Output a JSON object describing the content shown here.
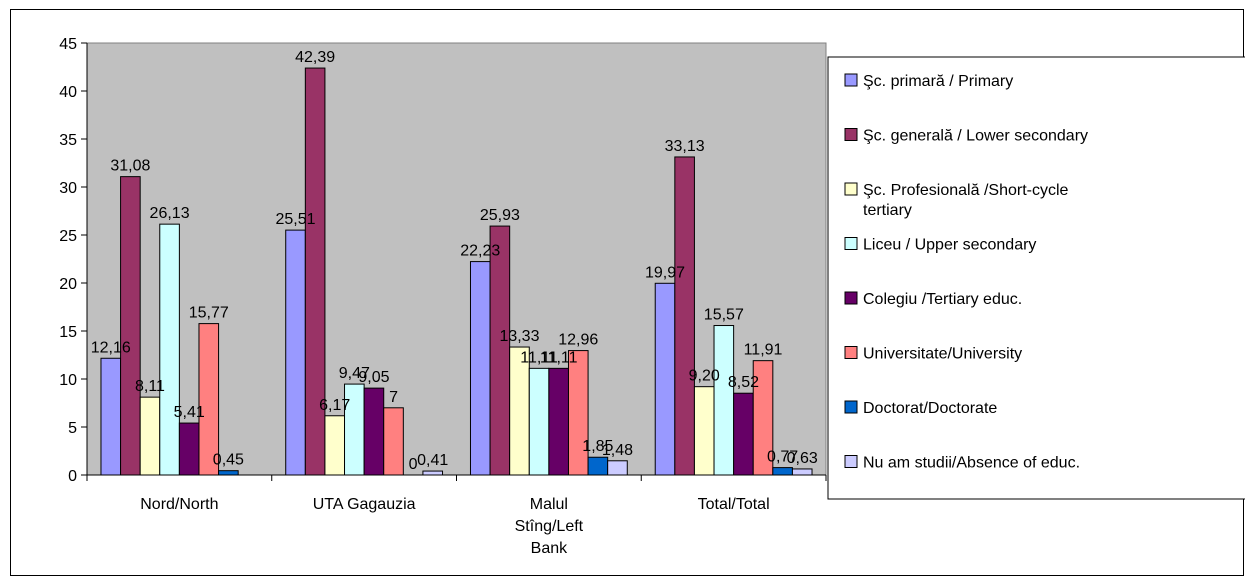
{
  "chart_data": {
    "type": "bar",
    "categories": [
      "Nord/North",
      "UTA Gagauzia",
      "Malul Stîng/Left Bank",
      "Total/Total"
    ],
    "category_display_lines": [
      [
        "Nord/North"
      ],
      [
        "UTA Gagauzia"
      ],
      [
        "Malul",
        "Stîng/Left",
        "Bank"
      ],
      [
        "Total/Total"
      ]
    ],
    "ylim": [
      0,
      45
    ],
    "yticks": [
      "0",
      "5",
      "10",
      "15",
      "20",
      "25",
      "30",
      "35",
      "40",
      "45"
    ],
    "title": "",
    "xlabel": "",
    "ylabel": "",
    "grid": false,
    "plot_background": "#c0c0c0",
    "legend_position": "right",
    "series": [
      {
        "name": "Şc. primară / Primary",
        "legend_lines": [
          "Şc. primară / Primary"
        ],
        "color": "#9999ff",
        "values": [
          12.16,
          25.51,
          22.23,
          19.97
        ],
        "labels": [
          "12,16",
          "25,51",
          "22,23",
          "19,97"
        ]
      },
      {
        "name": "Şc. generală / Lower secondary",
        "legend_lines": [
          "Şc. generală / Lower secondary"
        ],
        "color": "#993366",
        "values": [
          31.08,
          42.39,
          25.93,
          33.13
        ],
        "labels": [
          "31,08",
          "42,39",
          "25,93",
          "33,13"
        ]
      },
      {
        "name": "Şc. Profesională /Short-cycle tertiary",
        "legend_lines": [
          "Şc. Profesională /Short-cycle",
          "tertiary"
        ],
        "color": "#ffffcc",
        "values": [
          8.11,
          6.17,
          13.33,
          9.2
        ],
        "labels": [
          "8,11",
          "6,17",
          "13,33",
          "9,20"
        ]
      },
      {
        "name": "Liceu / Upper secondary",
        "legend_lines": [
          "Liceu / Upper secondary"
        ],
        "color": "#ccffff",
        "values": [
          26.13,
          9.47,
          11.11,
          15.57
        ],
        "labels": [
          "26,13",
          "9,47",
          "11,11",
          "15,57"
        ]
      },
      {
        "name": "Colegiu /Tertiary educ.",
        "legend_lines": [
          "Colegiu /Tertiary educ."
        ],
        "color": "#660066",
        "values": [
          5.41,
          9.05,
          11.11,
          8.52
        ],
        "labels": [
          "5,41",
          "9,05",
          "11,11",
          "8,52"
        ]
      },
      {
        "name": "Universitate/University",
        "legend_lines": [
          "Universitate/University"
        ],
        "color": "#ff8080",
        "values": [
          15.77,
          7,
          12.96,
          11.91
        ],
        "labels": [
          "15,77",
          "7",
          "12,96",
          "11,91"
        ]
      },
      {
        "name": "Doctorat/Doctorate",
        "legend_lines": [
          "Doctorat/Doctorate"
        ],
        "color": "#0066cc",
        "values": [
          0.45,
          0,
          1.85,
          0.77
        ],
        "labels": [
          "0,45",
          "0",
          "1,85",
          "0,77"
        ]
      },
      {
        "name": "Nu am studii/Absence of educ.",
        "legend_lines": [
          "Nu am studii/Absence of educ."
        ],
        "color": "#ccccff",
        "values": [
          0,
          0.41,
          1.48,
          0.63
        ],
        "labels": [
          "",
          "0,41",
          "1,48",
          "0,63"
        ]
      }
    ]
  }
}
